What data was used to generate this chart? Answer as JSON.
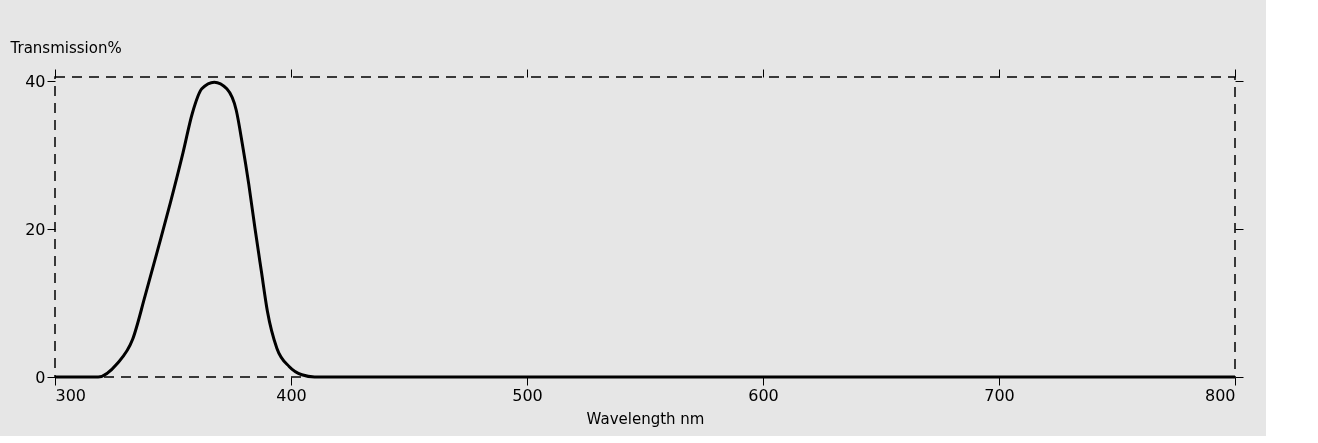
{
  "chart_data": {
    "type": "line",
    "xlabel": "Wavelength nm",
    "ylabel": "Transmission%",
    "x": [
      300,
      318.3,
      326.3,
      332.9,
      338.2,
      343.6,
      348.9,
      354.2,
      358.2,
      362.2,
      367.5,
      372.8,
      376.8,
      379.4,
      382.1,
      384.7,
      387.4,
      390,
      394,
      399.3,
      404.6,
      410,
      800
    ],
    "series": [
      {
        "color": "#000000",
        "values": [
          0,
          0,
          1.8,
          5.1,
          11,
          17.3,
          23.6,
          30.3,
          35.7,
          39,
          39.9,
          39,
          36.1,
          31.5,
          26.1,
          20.2,
          14.4,
          8.9,
          3.9,
          1.4,
          0.3,
          0,
          0
        ]
      }
    ],
    "xlim": [
      300,
      800
    ],
    "xticks": [
      300,
      400,
      500,
      600,
      700,
      800
    ],
    "ylim": [
      0,
      40.6
    ],
    "yticks": [
      0,
      20,
      40
    ],
    "grid": false,
    "legend": false,
    "marker": "none",
    "line_style": "solid"
  }
}
